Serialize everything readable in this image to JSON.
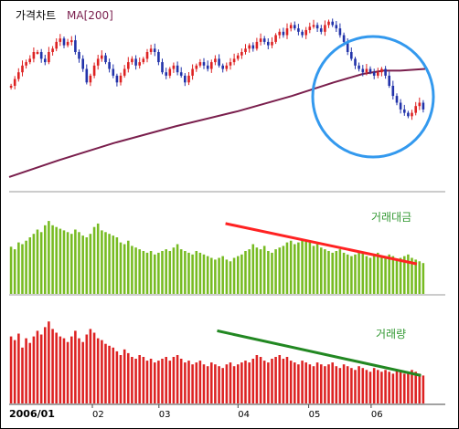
{
  "chart_data": {
    "type": "candlestick_with_volume",
    "price_panel": {
      "title_main": "가격차트",
      "title_ma": "MA[200]",
      "ma_period": 200,
      "ma_line_points": [
        [
          0,
          0.06
        ],
        [
          0.12,
          0.16
        ],
        [
          0.25,
          0.26
        ],
        [
          0.4,
          0.36
        ],
        [
          0.55,
          0.45
        ],
        [
          0.68,
          0.54
        ],
        [
          0.78,
          0.62
        ],
        [
          0.85,
          0.67
        ],
        [
          0.9,
          0.69
        ],
        [
          0.94,
          0.69
        ],
        [
          1.0,
          0.7
        ]
      ],
      "price_path": [
        0.6,
        0.64,
        0.68,
        0.72,
        0.74,
        0.76,
        0.8,
        0.8,
        0.76,
        0.74,
        0.8,
        0.82,
        0.86,
        0.88,
        0.84,
        0.86,
        0.87,
        0.8,
        0.76,
        0.7,
        0.62,
        0.66,
        0.72,
        0.76,
        0.78,
        0.74,
        0.7,
        0.66,
        0.62,
        0.66,
        0.7,
        0.74,
        0.76,
        0.72,
        0.74,
        0.76,
        0.8,
        0.82,
        0.8,
        0.74,
        0.68,
        0.66,
        0.7,
        0.72,
        0.68,
        0.66,
        0.62,
        0.66,
        0.7,
        0.72,
        0.74,
        0.72,
        0.7,
        0.74,
        0.76,
        0.72,
        0.7,
        0.72,
        0.74,
        0.76,
        0.78,
        0.8,
        0.82,
        0.84,
        0.82,
        0.86,
        0.88,
        0.86,
        0.84,
        0.86,
        0.9,
        0.92,
        0.9,
        0.94,
        0.96,
        0.94,
        0.92,
        0.9,
        0.93,
        0.95,
        0.96,
        0.94,
        0.92,
        0.96,
        0.98,
        0.96,
        0.94,
        0.9,
        0.86,
        0.8,
        0.76,
        0.72,
        0.7,
        0.68,
        0.7,
        0.68,
        0.66,
        0.68,
        0.7,
        0.66,
        0.6,
        0.54,
        0.5,
        0.46,
        0.44,
        0.42,
        0.44,
        0.48,
        0.5,
        0.46
      ]
    },
    "trading_value_panel": {
      "label": "거래대금",
      "values": [
        0.55,
        0.52,
        0.6,
        0.58,
        0.62,
        0.66,
        0.7,
        0.75,
        0.72,
        0.8,
        0.85,
        0.8,
        0.78,
        0.76,
        0.74,
        0.72,
        0.7,
        0.75,
        0.72,
        0.68,
        0.66,
        0.7,
        0.78,
        0.82,
        0.74,
        0.72,
        0.7,
        0.68,
        0.66,
        0.6,
        0.58,
        0.62,
        0.56,
        0.54,
        0.52,
        0.5,
        0.48,
        0.5,
        0.46,
        0.48,
        0.5,
        0.52,
        0.5,
        0.54,
        0.58,
        0.52,
        0.5,
        0.48,
        0.46,
        0.5,
        0.48,
        0.46,
        0.44,
        0.42,
        0.4,
        0.42,
        0.44,
        0.4,
        0.38,
        0.42,
        0.44,
        0.46,
        0.5,
        0.52,
        0.58,
        0.54,
        0.52,
        0.56,
        0.5,
        0.48,
        0.52,
        0.54,
        0.56,
        0.6,
        0.62,
        0.58,
        0.6,
        0.64,
        0.62,
        0.6,
        0.56,
        0.58,
        0.54,
        0.52,
        0.5,
        0.48,
        0.5,
        0.52,
        0.48,
        0.46,
        0.44,
        0.46,
        0.5,
        0.48,
        0.44,
        0.42,
        0.46,
        0.48,
        0.44,
        0.42,
        0.46,
        0.44,
        0.4,
        0.42,
        0.44,
        0.46,
        0.42,
        0.4,
        0.38,
        0.36
      ],
      "trend_line": [
        [
          0.52,
          0.82
        ],
        [
          0.98,
          0.35
        ]
      ]
    },
    "volume_panel": {
      "label": "거래량",
      "values": [
        0.72,
        0.68,
        0.75,
        0.6,
        0.7,
        0.65,
        0.72,
        0.78,
        0.74,
        0.82,
        0.88,
        0.8,
        0.76,
        0.72,
        0.7,
        0.66,
        0.72,
        0.78,
        0.7,
        0.66,
        0.74,
        0.8,
        0.76,
        0.7,
        0.68,
        0.64,
        0.62,
        0.6,
        0.56,
        0.52,
        0.58,
        0.54,
        0.5,
        0.48,
        0.52,
        0.5,
        0.46,
        0.48,
        0.44,
        0.46,
        0.48,
        0.5,
        0.46,
        0.5,
        0.52,
        0.48,
        0.44,
        0.46,
        0.42,
        0.44,
        0.46,
        0.42,
        0.4,
        0.44,
        0.42,
        0.4,
        0.38,
        0.42,
        0.44,
        0.4,
        0.42,
        0.44,
        0.46,
        0.44,
        0.48,
        0.52,
        0.5,
        0.46,
        0.44,
        0.48,
        0.5,
        0.52,
        0.48,
        0.5,
        0.46,
        0.44,
        0.42,
        0.46,
        0.44,
        0.42,
        0.4,
        0.44,
        0.42,
        0.4,
        0.42,
        0.44,
        0.4,
        0.38,
        0.42,
        0.4,
        0.38,
        0.36,
        0.4,
        0.38,
        0.36,
        0.34,
        0.38,
        0.36,
        0.34,
        0.36,
        0.34,
        0.32,
        0.36,
        0.34,
        0.32,
        0.34,
        0.36,
        0.34,
        0.32,
        0.3
      ],
      "trend_line": [
        [
          0.5,
          0.78
        ],
        [
          0.99,
          0.3
        ]
      ]
    },
    "x_axis_labels": [
      "2006/01",
      "02",
      "03",
      "04",
      "05",
      "06"
    ],
    "x_axis_label_positions": [
      0.0,
      0.2,
      0.36,
      0.55,
      0.72,
      0.87
    ],
    "colors": {
      "price_up": "#dd2222",
      "price_down": "#2233aa",
      "ma_line": "#7a1f4d",
      "trading_value_bars": "#77bb22",
      "volume_bars": "#dd2222",
      "trading_value_trend": "#ff2222",
      "volume_trend": "#228822",
      "highlight_circle": "#3399ee",
      "trading_value_label": "#339933",
      "volume_label": "#339933",
      "title_main": "#000000",
      "title_ma": "#7a1f4d"
    }
  }
}
